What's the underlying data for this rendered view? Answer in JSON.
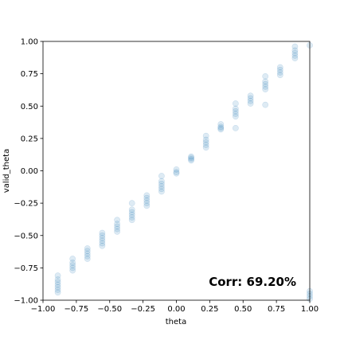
{
  "chart_data": {
    "type": "scatter",
    "title": "",
    "xlabel": "theta",
    "ylabel": "valid_theta",
    "xlim": [
      -1.0,
      1.0
    ],
    "ylim": [
      -1.0,
      1.0
    ],
    "x_ticks": [
      -1.0,
      -0.75,
      -0.5,
      -0.25,
      0.0,
      0.25,
      0.5,
      0.75,
      1.0
    ],
    "x_tick_labels": [
      "−1.00",
      "−0.75",
      "−0.50",
      "−0.25",
      "0.00",
      "0.25",
      "0.50",
      "0.75",
      "1.00"
    ],
    "y_ticks": [
      -1.0,
      -0.75,
      -0.5,
      -0.25,
      0.0,
      0.25,
      0.5,
      0.75,
      1.0
    ],
    "y_tick_labels": [
      "−1.00",
      "−0.75",
      "−0.50",
      "−0.25",
      "0.00",
      "0.25",
      "0.50",
      "0.75",
      "1.00"
    ],
    "grid": false,
    "legend": "none",
    "annotation": "Corr: 69.20%",
    "annotation_position": "bottom-right",
    "marker_color": "#1f77b4",
    "marker_alpha": 0.15,
    "clusters": [
      {
        "x": -0.889,
        "y": [
          -0.81,
          -0.84,
          -0.86,
          -0.88,
          -0.9,
          -0.92,
          -0.94
        ]
      },
      {
        "x": -0.778,
        "y": [
          -0.68,
          -0.71,
          -0.73,
          -0.75,
          -0.77
        ]
      },
      {
        "x": -0.667,
        "y": [
          -0.6,
          -0.62,
          -0.64,
          -0.66,
          -0.68
        ]
      },
      {
        "x": -0.556,
        "y": [
          -0.48,
          -0.5,
          -0.52,
          -0.54,
          -0.56,
          -0.58
        ]
      },
      {
        "x": -0.444,
        "y": [
          -0.38,
          -0.41,
          -0.43,
          -0.45,
          -0.47
        ]
      },
      {
        "x": -0.333,
        "y": [
          -0.25,
          -0.3,
          -0.32,
          -0.34,
          -0.36,
          -0.38
        ]
      },
      {
        "x": -0.222,
        "y": [
          -0.19,
          -0.21,
          -0.23,
          -0.25,
          -0.27
        ]
      },
      {
        "x": -0.111,
        "y": [
          -0.04,
          -0.08,
          -0.1,
          -0.12,
          -0.14,
          -0.16
        ]
      },
      {
        "x": 0.0,
        "y": [
          0.01,
          -0.01,
          -0.02
        ]
      },
      {
        "x": 0.111,
        "y": [
          0.11,
          0.1,
          0.09,
          0.08
        ]
      },
      {
        "x": 0.222,
        "y": [
          0.27,
          0.24,
          0.22,
          0.2,
          0.18
        ]
      },
      {
        "x": 0.333,
        "y": [
          0.36,
          0.34,
          0.33,
          0.32
        ]
      },
      {
        "x": 0.444,
        "y": [
          0.52,
          0.48,
          0.46,
          0.44,
          0.42,
          0.33
        ]
      },
      {
        "x": 0.556,
        "y": [
          0.58,
          0.56,
          0.54,
          0.52
        ]
      },
      {
        "x": 0.667,
        "y": [
          0.73,
          0.69,
          0.67,
          0.65,
          0.63,
          0.51
        ]
      },
      {
        "x": 0.778,
        "y": [
          0.8,
          0.78,
          0.76,
          0.74
        ]
      },
      {
        "x": 0.889,
        "y": [
          0.96,
          0.93,
          0.91,
          0.89,
          0.87
        ]
      },
      {
        "x": 1.0,
        "y": [
          -0.93,
          -0.95,
          -0.97,
          -0.99
        ]
      },
      {
        "x": 1.0,
        "y": [
          0.97
        ]
      }
    ]
  }
}
